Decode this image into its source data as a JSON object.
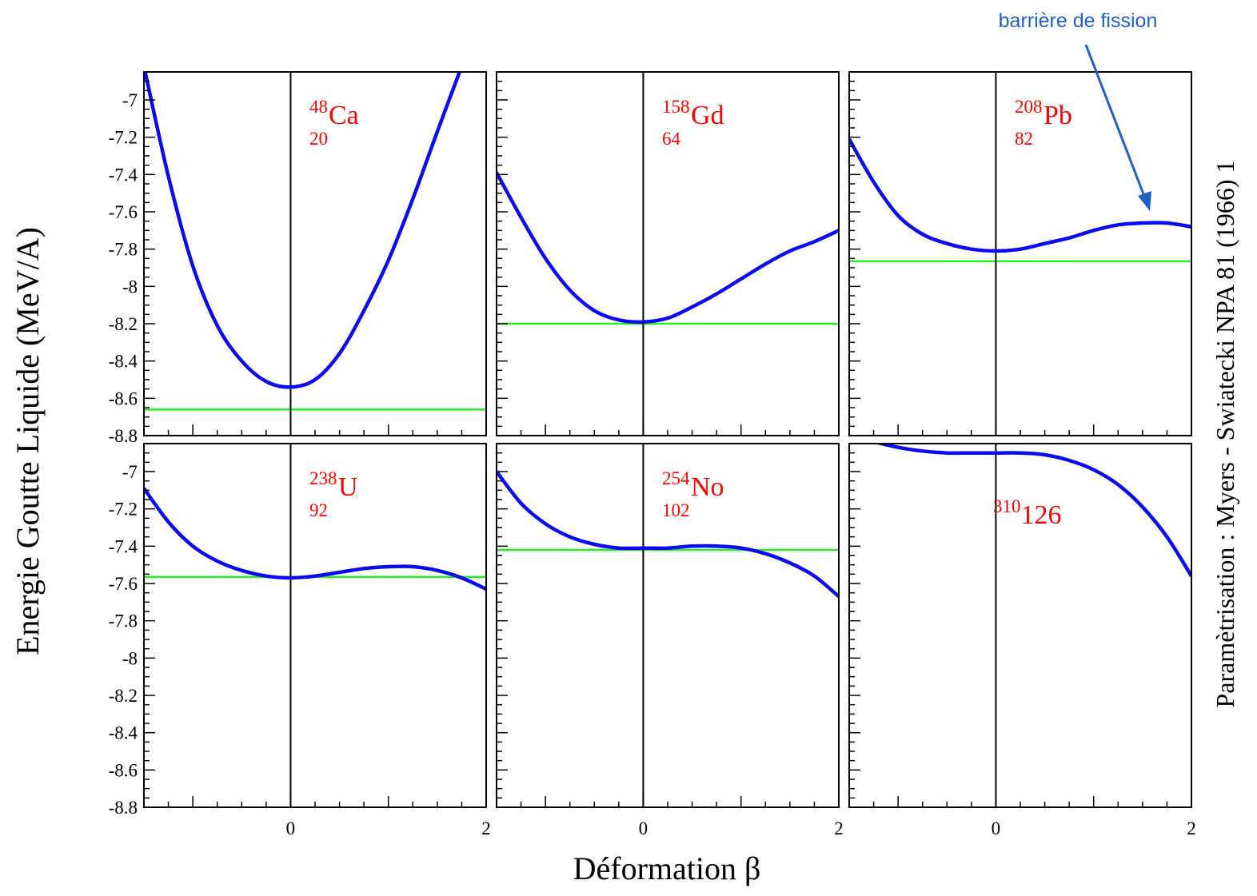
{
  "chart_data": {
    "type": "line",
    "ylabel": "Energie Goutte Liquide (MeV/A)",
    "xlabel": "Déformation β",
    "side_note": "Paramètrisation : Myers - Swiatecki NPA 81 (1966) 1",
    "annotation": "barrière de fission",
    "ylim": [
      -8.8,
      -6.85
    ],
    "xlim": [
      -1.5,
      2
    ],
    "x_tick_labels": [
      "0",
      "2"
    ],
    "y_tick_labels": [
      "-7",
      "-7.2",
      "-7.4",
      "-7.6",
      "-7.8",
      "-8",
      "-8.2",
      "-8.4",
      "-8.6",
      "-8.8"
    ],
    "y_tick_values": [
      -7,
      -7.2,
      -7.4,
      -7.6,
      -7.8,
      -8,
      -8.2,
      -8.4,
      -8.6,
      -8.8
    ],
    "grid": false,
    "colors": {
      "curve": "#0b0bf0",
      "reference_line": "#22ee22",
      "nucleus_label": "#ff0000",
      "annotation": "#1f5fc8",
      "axes": "#000000"
    },
    "panels": [
      {
        "row": 0,
        "col": 0,
        "mass": "48",
        "charge": "20",
        "symbol": "Ca",
        "reference_energy": -8.66,
        "curve": {
          "x": [
            -1.5,
            -1.25,
            -1.0,
            -0.75,
            -0.5,
            -0.25,
            0.0,
            0.25,
            0.5,
            0.75,
            1.0,
            1.25,
            1.5,
            1.75
          ],
          "y": [
            -6.82,
            -7.41,
            -7.89,
            -8.21,
            -8.4,
            -8.51,
            -8.54,
            -8.5,
            -8.36,
            -8.13,
            -7.86,
            -7.53,
            -7.17,
            -6.82
          ]
        }
      },
      {
        "row": 0,
        "col": 1,
        "mass": "158",
        "charge": "64",
        "symbol": "Gd",
        "reference_energy": -8.2,
        "curve": {
          "x": [
            -1.5,
            -1.25,
            -1.0,
            -0.75,
            -0.5,
            -0.25,
            0.0,
            0.25,
            0.5,
            0.75,
            1.0,
            1.25,
            1.5,
            1.75,
            2.0
          ],
          "y": [
            -7.39,
            -7.63,
            -7.85,
            -8.02,
            -8.13,
            -8.18,
            -8.19,
            -8.17,
            -8.11,
            -8.04,
            -7.96,
            -7.88,
            -7.81,
            -7.76,
            -7.7
          ]
        }
      },
      {
        "row": 0,
        "col": 2,
        "mass": "208",
        "charge": "82",
        "symbol": "Pb",
        "reference_energy": -7.865,
        "annotated_barrier": true,
        "curve": {
          "x": [
            -1.5,
            -1.25,
            -1.0,
            -0.75,
            -0.5,
            -0.25,
            0.0,
            0.25,
            0.5,
            0.75,
            1.0,
            1.25,
            1.5,
            1.75,
            2.0
          ],
          "y": [
            -7.21,
            -7.44,
            -7.62,
            -7.72,
            -7.77,
            -7.8,
            -7.81,
            -7.8,
            -7.77,
            -7.74,
            -7.7,
            -7.67,
            -7.66,
            -7.66,
            -7.68
          ]
        }
      },
      {
        "row": 1,
        "col": 0,
        "mass": "238",
        "charge": "92",
        "symbol": "U",
        "reference_energy": -7.565,
        "curve": {
          "x": [
            -1.5,
            -1.25,
            -1.0,
            -0.75,
            -0.5,
            -0.25,
            0.0,
            0.25,
            0.5,
            0.75,
            1.0,
            1.25,
            1.5,
            1.75,
            2.0
          ],
          "y": [
            -7.09,
            -7.27,
            -7.4,
            -7.48,
            -7.53,
            -7.56,
            -7.57,
            -7.56,
            -7.54,
            -7.52,
            -7.51,
            -7.51,
            -7.53,
            -7.57,
            -7.63
          ]
        }
      },
      {
        "row": 1,
        "col": 1,
        "mass": "254",
        "charge": "102",
        "symbol": "No",
        "reference_energy": -7.42,
        "curve": {
          "x": [
            -1.5,
            -1.25,
            -1.0,
            -0.75,
            -0.5,
            -0.25,
            0.0,
            0.25,
            0.5,
            0.75,
            1.0,
            1.25,
            1.5,
            1.75,
            2.0
          ],
          "y": [
            -7.0,
            -7.17,
            -7.28,
            -7.35,
            -7.39,
            -7.41,
            -7.41,
            -7.41,
            -7.4,
            -7.4,
            -7.41,
            -7.44,
            -7.49,
            -7.56,
            -7.67
          ]
        }
      },
      {
        "row": 1,
        "col": 2,
        "mass": "310",
        "charge": "",
        "symbol": "126",
        "reference_energy": null,
        "curve": {
          "x": [
            -1.25,
            -1.0,
            -0.75,
            -0.5,
            -0.25,
            0.0,
            0.25,
            0.5,
            0.75,
            1.0,
            1.25,
            1.5,
            1.75,
            2.0
          ],
          "y": [
            -6.84,
            -6.87,
            -6.89,
            -6.9,
            -6.9,
            -6.9,
            -6.9,
            -6.91,
            -6.94,
            -6.99,
            -7.07,
            -7.19,
            -7.35,
            -7.56
          ]
        }
      }
    ]
  }
}
